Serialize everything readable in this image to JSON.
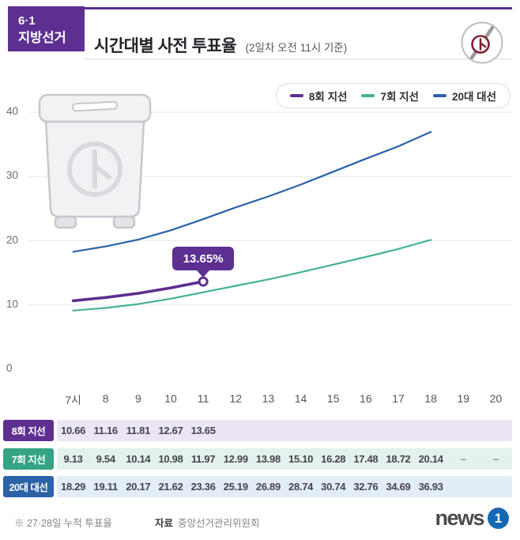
{
  "header": {
    "badge_line1": "6·1",
    "badge_line2": "지방선거",
    "title": "시간대별 사전 투표율",
    "subtitle": "(2일차 오전 11시 기준)"
  },
  "legend": [
    {
      "label": "8회 지선",
      "color": "#5c2f91"
    },
    {
      "label": "7회 지선",
      "color": "#45b293"
    },
    {
      "label": "20대 대선",
      "color": "#2b62a8"
    }
  ],
  "chart_data": {
    "type": "line",
    "x_labels": [
      "7시",
      "8",
      "9",
      "10",
      "11",
      "12",
      "13",
      "14",
      "15",
      "16",
      "17",
      "18",
      "19",
      "20"
    ],
    "yticks": [
      0,
      10,
      20,
      30,
      40
    ],
    "ylim": [
      0,
      40
    ],
    "grid": true,
    "legend_position": "top-right",
    "series": [
      {
        "name": "8회 지선",
        "color": "#5c2f91",
        "values": [
          10.66,
          11.16,
          11.81,
          12.67,
          13.65
        ]
      },
      {
        "name": "7회 지선",
        "color": "#45b293",
        "values": [
          9.13,
          9.54,
          10.14,
          10.98,
          11.97,
          12.99,
          13.98,
          15.1,
          16.28,
          17.48,
          18.72,
          20.14
        ]
      },
      {
        "name": "20대 대선",
        "color": "#2b62a8",
        "values": [
          18.29,
          19.11,
          20.17,
          21.62,
          23.36,
          25.19,
          26.89,
          28.74,
          30.74,
          32.76,
          34.69,
          36.93
        ]
      }
    ],
    "annotation": {
      "label": "13.65%",
      "series": "8회 지선",
      "x_index": 4,
      "value": 13.65
    }
  },
  "table": {
    "rows": [
      {
        "label": "8회 지선",
        "badge_color": "#5c2f91",
        "row_color": "#ece6f4",
        "values": [
          "10.66",
          "11.16",
          "11.81",
          "12.67",
          "13.65",
          "",
          "",
          "",
          "",
          "",
          "",
          "",
          "",
          ""
        ]
      },
      {
        "label": "7회 지선",
        "badge_color": "#35a384",
        "row_color": "#e3f2ec",
        "values": [
          "9.13",
          "9.54",
          "10.14",
          "10.98",
          "11.97",
          "12.99",
          "13.98",
          "15.10",
          "16.28",
          "17.48",
          "18.72",
          "20.14",
          "–",
          "–"
        ]
      },
      {
        "label": "20대 대선",
        "badge_color": "#2b62a8",
        "row_color": "#e3edf8",
        "values": [
          "18.29",
          "19.11",
          "20.17",
          "21.62",
          "23.36",
          "25.19",
          "26.89",
          "28.74",
          "30.74",
          "32.76",
          "34.69",
          "36.93",
          "",
          ""
        ]
      }
    ]
  },
  "footer": {
    "note": "※ 27·28일 누적 투표율",
    "source_label": "자료",
    "source_value": "중앙선거관리위원회",
    "logo_text": "news",
    "logo_digit": "1"
  }
}
